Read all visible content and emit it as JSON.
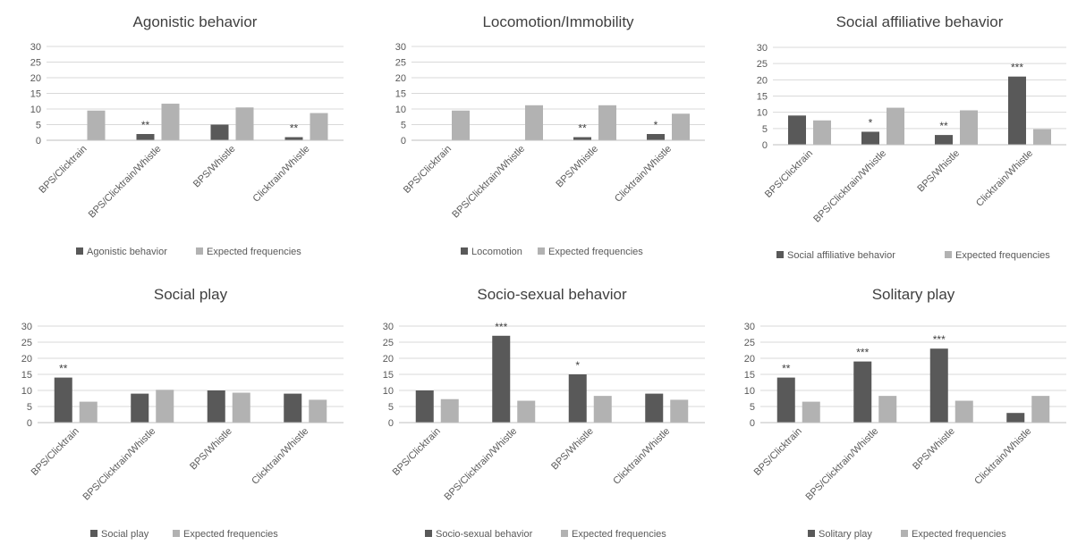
{
  "colors": {
    "observed": "#595959",
    "expected": "#b2b2b2",
    "grid": "#d9d9d9",
    "text": "#595959",
    "title": "#404040"
  },
  "chart_data": [
    {
      "type": "bar",
      "title": "Agonistic behavior",
      "categories": [
        "BPS/Clicktrain",
        "BPS/Clicktrain/Whistle",
        "BPS/Whistle",
        "Clicktrain/Whistle"
      ],
      "series": [
        {
          "name": "Agonistic behavior",
          "values": [
            0,
            2,
            5,
            1
          ]
        },
        {
          "name": "Expected frequencies",
          "values": [
            9.5,
            11.7,
            10.5,
            8.7
          ]
        }
      ],
      "annotations": [
        "",
        "**",
        "",
        "**"
      ],
      "ylim": [
        0,
        30
      ],
      "yticks": [
        0,
        5,
        10,
        15,
        20,
        25,
        30
      ],
      "grid": true,
      "legend": "bottom"
    },
    {
      "type": "bar",
      "title": "Locomotion/Immobility",
      "categories": [
        "BPS/Clicktrain",
        "BPS/Clicktrain/Whistle",
        "BPS/Whistle",
        "Clicktrain/Whistle"
      ],
      "series": [
        {
          "name": "Locomotion",
          "values": [
            0,
            0,
            1,
            2
          ]
        },
        {
          "name": "Expected frequencies",
          "values": [
            9.5,
            11.2,
            11.2,
            8.5
          ]
        }
      ],
      "annotations": [
        "",
        "",
        "**",
        "*"
      ],
      "ylim": [
        0,
        30
      ],
      "yticks": [
        0,
        5,
        10,
        15,
        20,
        25,
        30
      ],
      "grid": true,
      "legend": "bottom"
    },
    {
      "type": "bar",
      "title": "Social affiliative behavior",
      "categories": [
        "BPS/Clicktrain",
        "BPS/Clicktrain/Whistle",
        "BPS/Whistle",
        "Clicktrain/Whistle"
      ],
      "series": [
        {
          "name": "Social affiliative behavior",
          "values": [
            9,
            4,
            3,
            21
          ]
        },
        {
          "name": "Expected frequencies",
          "values": [
            7.5,
            11.4,
            10.6,
            4.8
          ]
        }
      ],
      "annotations": [
        "",
        "*",
        "**",
        "***"
      ],
      "ylim": [
        0,
        30
      ],
      "yticks": [
        0,
        5,
        10,
        15,
        20,
        25,
        30
      ],
      "grid": true,
      "legend": "bottom"
    },
    {
      "type": "bar",
      "title": "Social play",
      "categories": [
        "BPS/Clicktrain",
        "BPS/Clicktrain/Whistle",
        "BPS/Whistle",
        "Clicktrain/Whistle"
      ],
      "series": [
        {
          "name": "Social play",
          "values": [
            14,
            9,
            10,
            9
          ]
        },
        {
          "name": "Expected frequencies",
          "values": [
            6.5,
            10.2,
            9.3,
            7.1
          ]
        }
      ],
      "annotations": [
        "**",
        "",
        "",
        ""
      ],
      "ylim": [
        0,
        30
      ],
      "yticks": [
        0,
        5,
        10,
        15,
        20,
        25,
        30
      ],
      "grid": true,
      "legend": "bottom"
    },
    {
      "type": "bar",
      "title": "Socio-sexual behavior",
      "categories": [
        "BPS/Clicktrain",
        "BPS/Clicktrain/Whistle",
        "BPS/Whistle",
        "Clicktrain/Whistle"
      ],
      "series": [
        {
          "name": "Socio-sexual behavior",
          "values": [
            10,
            27,
            15,
            9
          ]
        },
        {
          "name": "Expected frequencies",
          "values": [
            7.3,
            6.8,
            8.3,
            7.1
          ]
        }
      ],
      "annotations": [
        "",
        "***",
        "*",
        ""
      ],
      "ylim": [
        0,
        30
      ],
      "yticks": [
        0,
        5,
        10,
        15,
        20,
        25,
        30
      ],
      "grid": true,
      "legend": "bottom"
    },
    {
      "type": "bar",
      "title": "Solitary play",
      "categories": [
        "BPS/Clicktrain",
        "BPS/Clicktrain/Whistle",
        "BPS/Whistle",
        "Clicktrain/Whistle"
      ],
      "series": [
        {
          "name": "Solitary play",
          "values": [
            14,
            19,
            23,
            3
          ]
        },
        {
          "name": "Expected frequencies",
          "values": [
            6.5,
            8.3,
            6.8,
            8.3
          ]
        }
      ],
      "annotations": [
        "**",
        "***",
        "***",
        ""
      ],
      "ylim": [
        0,
        30
      ],
      "yticks": [
        0,
        5,
        10,
        15,
        20,
        25,
        30
      ],
      "grid": true,
      "legend": "bottom"
    }
  ]
}
